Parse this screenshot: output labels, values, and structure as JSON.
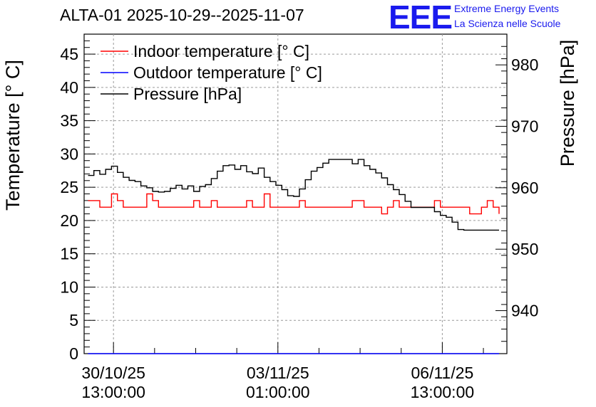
{
  "chart_data": {
    "type": "line",
    "title": "ALTA-01 2025-10-29--2025-11-07",
    "ylabel": "Temperature [° C]",
    "y2label": "Pressure [hPa]",
    "xlabel": "",
    "ylim": [
      0,
      48
    ],
    "y2lim": [
      933,
      985
    ],
    "yticks": [
      "0",
      "5",
      "10",
      "15",
      "20",
      "25",
      "30",
      "35",
      "40",
      "45"
    ],
    "y2ticks": [
      "940",
      "950",
      "960",
      "970",
      "980"
    ],
    "xlim": [
      "2025-10-29 22:00",
      "2025-11-07 22:00"
    ],
    "xticks": [
      {
        "date": "30/10/25",
        "time": "13:00:00",
        "x": "2025-10-30 13:00"
      },
      {
        "date": "03/11/25",
        "time": "01:00:00",
        "x": "2025-11-03 01:00"
      },
      {
        "date": "06/11/25",
        "time": "13:00:00",
        "x": "2025-11-06 13:00"
      }
    ],
    "grid": true,
    "legend_position": "top-left",
    "series": [
      {
        "name": "Indoor temperature [° C]",
        "color": "#ff0000",
        "axis": "left",
        "x": [
          "2025-10-30 00:00",
          "2025-10-30 03:00",
          "2025-10-30 06:00",
          "2025-10-30 09:00",
          "2025-10-30 12:00",
          "2025-10-30 15:00",
          "2025-10-30 18:00",
          "2025-10-30 21:00",
          "2025-10-31 00:00",
          "2025-10-31 03:00",
          "2025-10-31 06:00",
          "2025-10-31 09:00",
          "2025-10-31 12:00",
          "2025-10-31 15:00",
          "2025-10-31 18:00",
          "2025-10-31 21:00",
          "2025-11-01 00:00",
          "2025-11-01 03:00",
          "2025-11-01 06:00",
          "2025-11-01 09:00",
          "2025-11-01 12:00",
          "2025-11-01 15:00",
          "2025-11-01 18:00",
          "2025-11-01 21:00",
          "2025-11-02 00:00",
          "2025-11-02 03:00",
          "2025-11-02 06:00",
          "2025-11-02 09:00",
          "2025-11-02 12:00",
          "2025-11-02 15:00",
          "2025-11-02 18:00",
          "2025-11-02 21:00",
          "2025-11-03 00:00",
          "2025-11-03 03:00",
          "2025-11-03 06:00",
          "2025-11-03 09:00",
          "2025-11-03 12:00",
          "2025-11-03 15:00",
          "2025-11-03 18:00",
          "2025-11-03 21:00",
          "2025-11-04 00:00",
          "2025-11-04 03:00",
          "2025-11-04 06:00",
          "2025-11-04 09:00",
          "2025-11-04 12:00",
          "2025-11-04 15:00",
          "2025-11-04 18:00",
          "2025-11-04 21:00",
          "2025-11-05 00:00",
          "2025-11-05 03:00",
          "2025-11-05 06:00",
          "2025-11-05 09:00",
          "2025-11-05 12:00",
          "2025-11-05 15:00",
          "2025-11-05 18:00",
          "2025-11-05 21:00",
          "2025-11-06 00:00",
          "2025-11-06 03:00",
          "2025-11-06 06:00",
          "2025-11-06 09:00",
          "2025-11-06 12:00",
          "2025-11-06 15:00",
          "2025-11-06 18:00",
          "2025-11-06 21:00",
          "2025-11-07 00:00",
          "2025-11-07 03:00",
          "2025-11-07 06:00",
          "2025-11-07 09:00",
          "2025-11-07 12:00",
          "2025-11-07 15:00",
          "2025-11-07 18:00"
        ],
        "values": [
          23,
          23,
          22,
          22,
          24,
          23,
          22,
          22,
          22,
          22,
          24,
          23,
          22,
          22,
          22,
          22,
          22,
          22,
          23,
          22,
          22,
          23,
          22,
          22,
          22,
          22,
          22,
          23,
          22,
          22,
          24,
          22,
          22,
          22,
          22,
          22,
          23,
          22,
          22,
          22,
          22,
          22,
          22,
          22,
          22,
          23,
          23,
          22,
          22,
          22,
          21,
          22,
          23,
          22,
          22,
          22,
          22,
          22,
          22,
          23,
          22,
          22,
          22,
          22,
          22,
          21,
          21,
          22,
          23,
          22,
          21
        ]
      },
      {
        "name": "Outdoor temperature [° C]",
        "color": "#0000ff",
        "axis": "left",
        "x": [
          "2025-10-30 00:00",
          "2025-11-07 18:00"
        ],
        "values": [
          0,
          0
        ]
      },
      {
        "name": "Pressure [hPa]",
        "color": "#000000",
        "axis": "right",
        "x": [
          "2025-10-30 00:00",
          "2025-10-30 03:00",
          "2025-10-30 06:00",
          "2025-10-30 09:00",
          "2025-10-30 12:00",
          "2025-10-30 15:00",
          "2025-10-30 18:00",
          "2025-10-30 21:00",
          "2025-10-31 00:00",
          "2025-10-31 03:00",
          "2025-10-31 06:00",
          "2025-10-31 09:00",
          "2025-10-31 12:00",
          "2025-10-31 15:00",
          "2025-10-31 18:00",
          "2025-10-31 21:00",
          "2025-11-01 00:00",
          "2025-11-01 03:00",
          "2025-11-01 06:00",
          "2025-11-01 09:00",
          "2025-11-01 12:00",
          "2025-11-01 15:00",
          "2025-11-01 18:00",
          "2025-11-01 21:00",
          "2025-11-02 00:00",
          "2025-11-02 03:00",
          "2025-11-02 06:00",
          "2025-11-02 09:00",
          "2025-11-02 12:00",
          "2025-11-02 15:00",
          "2025-11-02 18:00",
          "2025-11-02 21:00",
          "2025-11-03 00:00",
          "2025-11-03 03:00",
          "2025-11-03 06:00",
          "2025-11-03 09:00",
          "2025-11-03 12:00",
          "2025-11-03 15:00",
          "2025-11-03 18:00",
          "2025-11-03 21:00",
          "2025-11-04 00:00",
          "2025-11-04 03:00",
          "2025-11-04 06:00",
          "2025-11-04 09:00",
          "2025-11-04 12:00",
          "2025-11-04 15:00",
          "2025-11-04 18:00",
          "2025-11-04 21:00",
          "2025-11-05 00:00",
          "2025-11-05 03:00",
          "2025-11-05 06:00",
          "2025-11-05 09:00",
          "2025-11-05 12:00",
          "2025-11-05 15:00",
          "2025-11-05 18:00",
          "2025-11-05 21:00",
          "2025-11-06 00:00",
          "2025-11-06 03:00",
          "2025-11-06 06:00",
          "2025-11-06 09:00",
          "2025-11-06 12:00",
          "2025-11-06 15:00",
          "2025-11-06 18:00",
          "2025-11-06 21:00",
          "2025-11-07 00:00",
          "2025-11-07 03:00",
          "2025-11-07 06:00",
          "2025-11-07 09:00",
          "2025-11-07 12:00",
          "2025-11-07 15:00",
          "2025-11-07 18:00"
        ],
        "values": [
          962,
          962.8,
          962.2,
          963,
          963.5,
          962.5,
          961.7,
          961.2,
          961,
          960.3,
          960,
          959.4,
          959.3,
          959.4,
          959.9,
          960.4,
          959.8,
          960.3,
          959.4,
          960.2,
          960.5,
          961.5,
          962.7,
          963.6,
          963.7,
          963,
          963.6,
          962.6,
          962.3,
          963.2,
          961.7,
          961,
          960.4,
          959.7,
          958.7,
          958.6,
          959.8,
          961.3,
          962.7,
          963.3,
          964,
          964.6,
          964.6,
          964.6,
          964.6,
          963.9,
          964.6,
          963.6,
          963,
          962.4,
          961.6,
          960.5,
          959.7,
          958.9,
          957.8,
          956.8,
          956.8,
          956.8,
          956.8,
          956.1,
          955.5,
          955.2,
          954.4,
          953.2,
          953.1,
          953.1,
          953.1,
          953.1,
          953.1,
          953.1,
          953.1
        ]
      }
    ]
  }
}
